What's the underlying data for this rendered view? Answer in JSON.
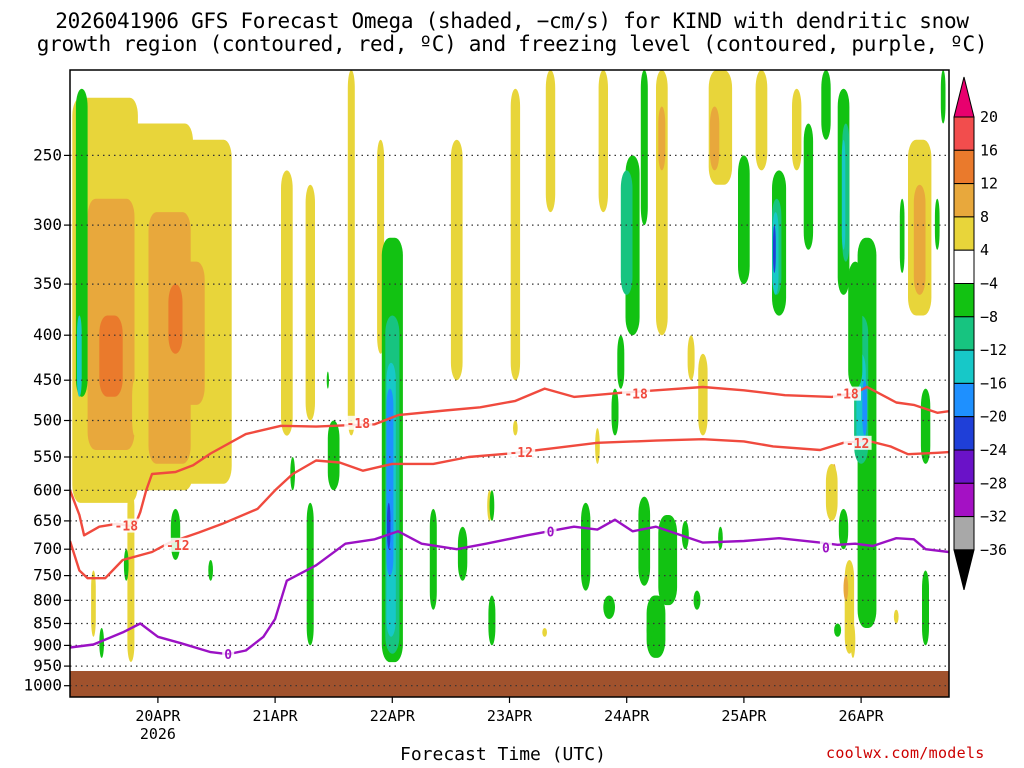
{
  "title": {
    "line1": "2026041906 GFS Forecast Omega (shaded, −cm/s) for KIND with dendritic snow",
    "line2": "growth region (contoured, red, ºC) and freezing level (contoured, purple, ºC)"
  },
  "footer": {
    "x_axis_title": "Forecast Time (UTC)",
    "credit": "coolwx.com/models"
  },
  "chart_data": {
    "type": "heatmap",
    "station": "KIND",
    "model_run": "2026041906",
    "y_axis": {
      "unit": "hPa",
      "inverted": true,
      "range": [
        200,
        1030
      ],
      "ticks": [
        250,
        300,
        350,
        400,
        450,
        500,
        550,
        600,
        650,
        700,
        750,
        800,
        850,
        900,
        950,
        1000
      ],
      "grid": "dotted"
    },
    "x_axis": {
      "unit": "days since 2026-04-19 06Z",
      "range": [
        0,
        7.5
      ],
      "ticks": [
        {
          "x": 0.75,
          "label": "20APR",
          "sublabel": "2026"
        },
        {
          "x": 1.75,
          "label": "21APR"
        },
        {
          "x": 2.75,
          "label": "22APR"
        },
        {
          "x": 3.75,
          "label": "23APR"
        },
        {
          "x": 4.75,
          "label": "24APR"
        },
        {
          "x": 5.75,
          "label": "25APR"
        },
        {
          "x": 6.75,
          "label": "26APR"
        }
      ]
    },
    "colorbar": {
      "labels": [
        "20",
        "16",
        "12",
        "8",
        "4",
        "−4",
        "−8",
        "−12",
        "−16",
        "−20",
        "−24",
        "−28",
        "−32",
        "−36"
      ],
      "bins": [
        {
          "color": "#e8006e",
          "range": [
            20,
            24
          ]
        },
        {
          "color": "#f24d4d",
          "range": [
            16,
            20
          ]
        },
        {
          "color": "#ea7a2c",
          "range": [
            12,
            16
          ]
        },
        {
          "color": "#e8a83c",
          "range": [
            8,
            12
          ]
        },
        {
          "color": "#e8d53a",
          "range": [
            4,
            8
          ]
        },
        {
          "color": "#ffffff",
          "range": [
            -4,
            4
          ]
        },
        {
          "color": "#12c212",
          "range": [
            -8,
            -4
          ]
        },
        {
          "color": "#17c480",
          "range": [
            -12,
            -8
          ]
        },
        {
          "color": "#17c8c8",
          "range": [
            -16,
            -12
          ]
        },
        {
          "color": "#1e90ff",
          "range": [
            -20,
            -16
          ]
        },
        {
          "color": "#1f3fd8",
          "range": [
            -24,
            -20
          ]
        },
        {
          "color": "#6a12c8",
          "range": [
            -28,
            -24
          ]
        },
        {
          "color": "#a411c4",
          "range": [
            -32,
            -28
          ]
        },
        {
          "color": "#a8a8a8",
          "range": [
            -36,
            -32
          ]
        },
        {
          "color": "#000000",
          "range": [
            -40,
            -36
          ]
        }
      ]
    },
    "contours": [
      {
        "value": -18,
        "label": "-18",
        "color": "#f04a3e",
        "points": [
          [
            0,
            600
          ],
          [
            0.08,
            640
          ],
          [
            0.12,
            675
          ],
          [
            0.25,
            660
          ],
          [
            0.4,
            655
          ],
          [
            0.55,
            660
          ],
          [
            0.6,
            635
          ],
          [
            0.65,
            600
          ],
          [
            0.7,
            575
          ],
          [
            0.9,
            572
          ],
          [
            1.05,
            562
          ],
          [
            1.2,
            545
          ],
          [
            1.5,
            518
          ],
          [
            1.8,
            507
          ],
          [
            2.1,
            508
          ],
          [
            2.4,
            506
          ],
          [
            2.6,
            505
          ],
          [
            2.8,
            493
          ],
          [
            3.2,
            487
          ],
          [
            3.5,
            483
          ],
          [
            3.8,
            475
          ],
          [
            4.05,
            460
          ],
          [
            4.3,
            470
          ],
          [
            4.7,
            465
          ],
          [
            5.0,
            462
          ],
          [
            5.4,
            458
          ],
          [
            5.75,
            462
          ],
          [
            6.1,
            468
          ],
          [
            6.5,
            470
          ],
          [
            6.7,
            465
          ],
          [
            6.8,
            458
          ],
          [
            7.05,
            477
          ],
          [
            7.2,
            480
          ],
          [
            7.4,
            490
          ],
          [
            7.5,
            488
          ]
        ],
        "label_positions": [
          [
            0.48,
            658
          ],
          [
            2.46,
            503
          ],
          [
            4.83,
            466
          ],
          [
            6.63,
            466
          ]
        ]
      },
      {
        "value": -12,
        "label": "-12",
        "color": "#f04a3e",
        "points": [
          [
            0,
            685
          ],
          [
            0.08,
            740
          ],
          [
            0.15,
            755
          ],
          [
            0.3,
            755
          ],
          [
            0.45,
            720
          ],
          [
            0.7,
            705
          ],
          [
            0.85,
            688
          ],
          [
            1.1,
            670
          ],
          [
            1.3,
            655
          ],
          [
            1.6,
            630
          ],
          [
            1.75,
            600
          ],
          [
            1.9,
            575
          ],
          [
            2.1,
            555
          ],
          [
            2.3,
            558
          ],
          [
            2.5,
            570
          ],
          [
            2.75,
            560
          ],
          [
            3.1,
            560
          ],
          [
            3.4,
            550
          ],
          [
            3.75,
            545
          ],
          [
            4.1,
            538
          ],
          [
            4.5,
            530
          ],
          [
            5.0,
            527
          ],
          [
            5.4,
            525
          ],
          [
            5.75,
            528
          ],
          [
            6.0,
            535
          ],
          [
            6.4,
            540
          ],
          [
            6.6,
            530
          ],
          [
            6.8,
            527
          ],
          [
            7.0,
            535
          ],
          [
            7.15,
            546
          ],
          [
            7.4,
            544
          ],
          [
            7.5,
            543
          ]
        ],
        "label_positions": [
          [
            0.92,
            692
          ],
          [
            3.85,
            543
          ],
          [
            6.72,
            530
          ]
        ]
      },
      {
        "value": 0,
        "label": "0",
        "color": "#9b11c4",
        "points": [
          [
            0,
            905
          ],
          [
            0.2,
            898
          ],
          [
            0.45,
            870
          ],
          [
            0.6,
            850
          ],
          [
            0.75,
            880
          ],
          [
            0.95,
            895
          ],
          [
            1.2,
            916
          ],
          [
            1.35,
            921
          ],
          [
            1.5,
            912
          ],
          [
            1.65,
            880
          ],
          [
            1.75,
            840
          ],
          [
            1.85,
            760
          ],
          [
            2.1,
            730
          ],
          [
            2.35,
            690
          ],
          [
            2.6,
            682
          ],
          [
            2.8,
            668
          ],
          [
            3.0,
            690
          ],
          [
            3.3,
            700
          ],
          [
            3.55,
            690
          ],
          [
            3.9,
            675
          ],
          [
            4.3,
            660
          ],
          [
            4.5,
            665
          ],
          [
            4.65,
            648
          ],
          [
            4.8,
            668
          ],
          [
            5.0,
            660
          ],
          [
            5.4,
            688
          ],
          [
            5.75,
            685
          ],
          [
            6.05,
            680
          ],
          [
            6.4,
            688
          ],
          [
            6.55,
            692
          ],
          [
            6.7,
            690
          ],
          [
            6.85,
            694
          ],
          [
            7.05,
            680
          ],
          [
            7.2,
            682
          ],
          [
            7.3,
            700
          ],
          [
            7.5,
            705
          ]
        ],
        "label_positions": [
          [
            1.35,
            921
          ],
          [
            4.1,
            668
          ],
          [
            6.45,
            697
          ]
        ]
      }
    ]
  }
}
